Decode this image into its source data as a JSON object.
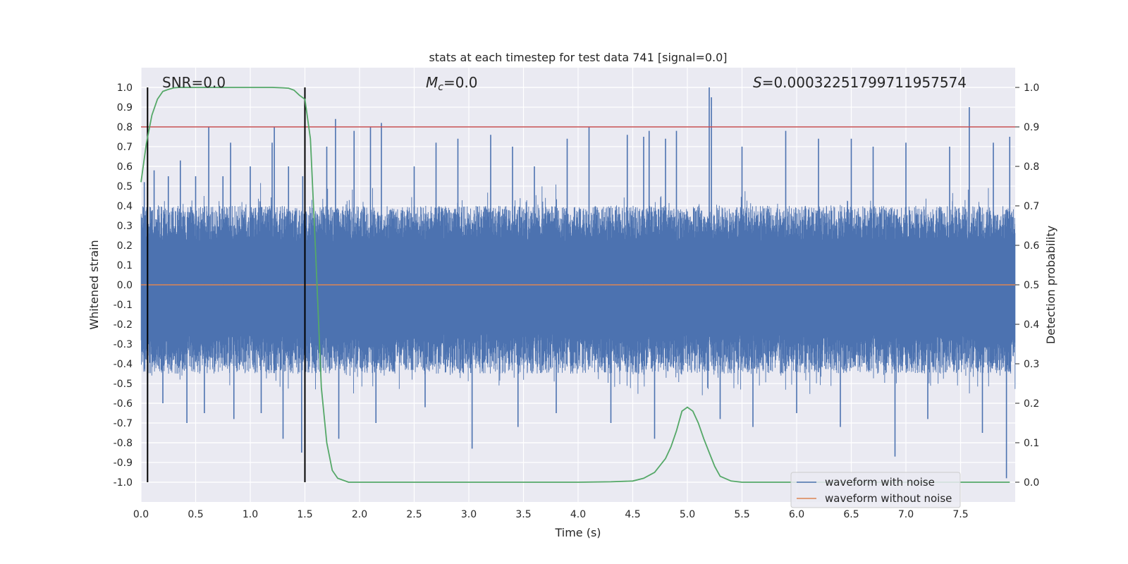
{
  "chart_data": {
    "type": "line",
    "title": "stats at each timestep for test data 741 [signal=0.0]",
    "xlabel": "Time (s)",
    "ylabel": "Whitened strain",
    "ylabel_right": "Detection probability",
    "xlim": [
      0.0,
      8.0
    ],
    "ylim": [
      -1.1,
      1.1
    ],
    "ylim_right": [
      -0.05,
      1.05
    ],
    "grid": true,
    "xticks": [
      "0.0",
      "0.5",
      "1.0",
      "1.5",
      "2.0",
      "2.5",
      "3.0",
      "3.5",
      "4.0",
      "4.5",
      "5.0",
      "5.5",
      "6.0",
      "6.5",
      "7.0",
      "7.5"
    ],
    "xtick_values": [
      0.0,
      0.5,
      1.0,
      1.5,
      2.0,
      2.5,
      3.0,
      3.5,
      4.0,
      4.5,
      5.0,
      5.5,
      6.0,
      6.5,
      7.0,
      7.5
    ],
    "yticks": [
      "1.0",
      "0.9",
      "0.8",
      "0.7",
      "0.6",
      "0.5",
      "0.4",
      "0.3",
      "0.2",
      "0.1",
      "0.0",
      "-0.1",
      "-0.2",
      "-0.3",
      "-0.4",
      "-0.5",
      "-0.6",
      "-0.7",
      "-0.8",
      "-0.9",
      "-1.0"
    ],
    "ytick_values": [
      1.0,
      0.9,
      0.8,
      0.7,
      0.6,
      0.5,
      0.4,
      0.3,
      0.2,
      0.1,
      0.0,
      -0.1,
      -0.2,
      -0.3,
      -0.4,
      -0.5,
      -0.6,
      -0.7,
      -0.8,
      -0.9,
      -1.0
    ],
    "yticks_right": [
      "1.0",
      "0.9",
      "0.8",
      "0.7",
      "0.6",
      "0.5",
      "0.4",
      "0.3",
      "0.2",
      "0.1",
      "0.0"
    ],
    "ytick_right_values": [
      1.0,
      0.9,
      0.8,
      0.7,
      0.6,
      0.5,
      0.4,
      0.3,
      0.2,
      0.1,
      0.0
    ],
    "annotations": {
      "snr": "SNR=0.0",
      "mc_symbol": "M",
      "mc_subscript": "c",
      "mc_value": "=0.0",
      "s_symbol": "S",
      "s_value": "=0.0003225179971195757​4"
    },
    "threshold_right": 0.9,
    "vlines": [
      0.06,
      1.5
    ],
    "noise_envelope": {
      "typical_positive": 0.4,
      "typical_negative": -0.45
    },
    "noise_spikes": [
      {
        "t": 0.03,
        "v": 0.52
      },
      {
        "t": 0.06,
        "v": -0.65
      },
      {
        "t": 0.12,
        "v": 0.58
      },
      {
        "t": 0.2,
        "v": -0.6
      },
      {
        "t": 0.25,
        "v": 0.55
      },
      {
        "t": 0.36,
        "v": 0.63
      },
      {
        "t": 0.42,
        "v": -0.7
      },
      {
        "t": 0.5,
        "v": 0.55
      },
      {
        "t": 0.58,
        "v": -0.65
      },
      {
        "t": 0.62,
        "v": 0.8
      },
      {
        "t": 0.75,
        "v": 0.55
      },
      {
        "t": 0.82,
        "v": 0.72
      },
      {
        "t": 0.85,
        "v": -0.68
      },
      {
        "t": 1.0,
        "v": 0.6
      },
      {
        "t": 1.1,
        "v": -0.65
      },
      {
        "t": 1.2,
        "v": 0.72
      },
      {
        "t": 1.22,
        "v": 0.8
      },
      {
        "t": 1.3,
        "v": -0.78
      },
      {
        "t": 1.35,
        "v": 0.6
      },
      {
        "t": 1.47,
        "v": -0.85
      },
      {
        "t": 1.48,
        "v": 0.55
      },
      {
        "t": 1.7,
        "v": 0.7
      },
      {
        "t": 1.78,
        "v": 0.84
      },
      {
        "t": 1.81,
        "v": -0.78
      },
      {
        "t": 1.95,
        "v": 0.78
      },
      {
        "t": 2.1,
        "v": 0.8
      },
      {
        "t": 2.15,
        "v": -0.7
      },
      {
        "t": 2.2,
        "v": 0.82
      },
      {
        "t": 2.5,
        "v": 0.6
      },
      {
        "t": 2.6,
        "v": -0.62
      },
      {
        "t": 2.7,
        "v": 0.72
      },
      {
        "t": 2.9,
        "v": 0.74
      },
      {
        "t": 3.03,
        "v": -0.83
      },
      {
        "t": 3.2,
        "v": 0.76
      },
      {
        "t": 3.4,
        "v": 0.7
      },
      {
        "t": 3.45,
        "v": -0.72
      },
      {
        "t": 3.6,
        "v": 0.6
      },
      {
        "t": 3.8,
        "v": -0.65
      },
      {
        "t": 3.9,
        "v": 0.74
      },
      {
        "t": 4.1,
        "v": 0.8
      },
      {
        "t": 4.3,
        "v": -0.7
      },
      {
        "t": 4.45,
        "v": 0.76
      },
      {
        "t": 4.6,
        "v": 0.75
      },
      {
        "t": 4.65,
        "v": 0.78
      },
      {
        "t": 4.7,
        "v": -0.78
      },
      {
        "t": 4.8,
        "v": 0.74
      },
      {
        "t": 4.9,
        "v": 0.78
      },
      {
        "t": 5.2,
        "v": 1.0
      },
      {
        "t": 5.22,
        "v": 0.95
      },
      {
        "t": 5.3,
        "v": -0.68
      },
      {
        "t": 5.5,
        "v": 0.7
      },
      {
        "t": 5.6,
        "v": -0.72
      },
      {
        "t": 5.9,
        "v": 0.78
      },
      {
        "t": 6.0,
        "v": -0.65
      },
      {
        "t": 6.2,
        "v": 0.74
      },
      {
        "t": 6.4,
        "v": -0.72
      },
      {
        "t": 6.5,
        "v": 0.74
      },
      {
        "t": 6.7,
        "v": 0.7
      },
      {
        "t": 6.9,
        "v": -0.87
      },
      {
        "t": 7.0,
        "v": 0.72
      },
      {
        "t": 7.2,
        "v": -0.68
      },
      {
        "t": 7.4,
        "v": 0.7
      },
      {
        "t": 7.58,
        "v": 0.9
      },
      {
        "t": 7.7,
        "v": -0.75
      },
      {
        "t": 7.8,
        "v": 0.72
      },
      {
        "t": 7.92,
        "v": -0.98
      },
      {
        "t": 7.95,
        "v": 0.75
      }
    ],
    "series": [
      {
        "name": "waveform with noise",
        "color": "#4c72b0",
        "axis": "left"
      },
      {
        "name": "waveform without noise",
        "color": "#dd8452",
        "axis": "left",
        "x": [
          0.0,
          8.0
        ],
        "y": [
          0.0,
          0.0
        ]
      },
      {
        "name": "detection probability",
        "color": "#55a868",
        "axis": "right",
        "x": [
          0.0,
          0.05,
          0.1,
          0.15,
          0.2,
          0.25,
          0.3,
          0.35,
          0.4,
          0.5,
          0.6,
          0.8,
          1.0,
          1.2,
          1.3,
          1.35,
          1.4,
          1.45,
          1.5,
          1.55,
          1.6,
          1.65,
          1.7,
          1.75,
          1.8,
          1.9,
          2.0,
          2.5,
          3.0,
          3.5,
          4.0,
          4.3,
          4.5,
          4.6,
          4.7,
          4.8,
          4.85,
          4.9,
          4.95,
          5.0,
          5.05,
          5.1,
          5.15,
          5.2,
          5.25,
          5.3,
          5.4,
          5.5,
          6.0,
          6.5,
          7.0,
          7.5,
          7.95
        ],
        "y": [
          0.76,
          0.86,
          0.93,
          0.97,
          0.99,
          0.995,
          0.999,
          1.0,
          1.0,
          1.0,
          1.0,
          1.0,
          1.0,
          1.0,
          0.999,
          0.998,
          0.993,
          0.98,
          0.97,
          0.87,
          0.57,
          0.24,
          0.1,
          0.03,
          0.01,
          0.0,
          0.0,
          0.0,
          0.0,
          0.0,
          0.0,
          0.001,
          0.003,
          0.01,
          0.025,
          0.06,
          0.09,
          0.13,
          0.18,
          0.19,
          0.18,
          0.15,
          0.11,
          0.075,
          0.04,
          0.015,
          0.003,
          0.0,
          0.0,
          0.0,
          0.0,
          0.0,
          0.0
        ]
      }
    ],
    "threshold_color": "#c44e52",
    "vline_color": "#000000",
    "legend": [
      "waveform with noise",
      "waveform without noise"
    ],
    "legend_placement": "lower-right"
  }
}
